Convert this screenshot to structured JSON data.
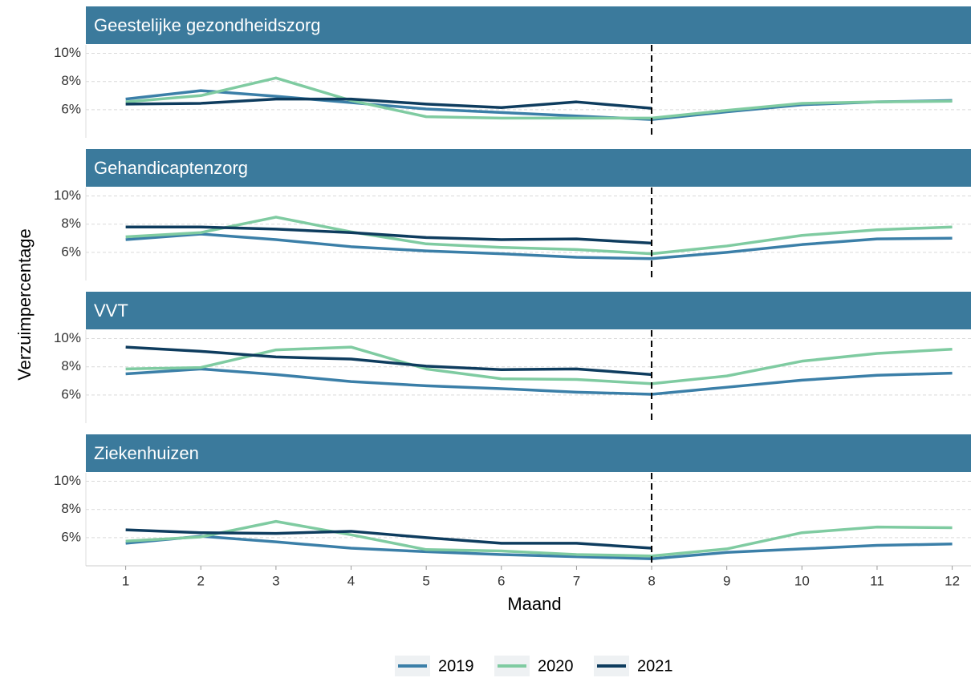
{
  "chart_data": {
    "type": "line",
    "x_label": "Maand",
    "y_label": "Verzuimpercentage",
    "x": [
      1,
      2,
      3,
      4,
      5,
      6,
      7,
      8,
      9,
      10,
      11,
      12
    ],
    "xlim": [
      0.47,
      12.25
    ],
    "xticks": [
      1,
      2,
      3,
      4,
      5,
      6,
      7,
      8,
      9,
      10,
      11,
      12
    ],
    "ylim": [
      4.0,
      10.6
    ],
    "yticks": [
      {
        "value": 6,
        "label": "6%"
      },
      {
        "value": 8,
        "label": "8%"
      },
      {
        "value": 10,
        "label": "10%"
      }
    ],
    "grid": true,
    "vline": 8,
    "legend": "bottom",
    "series": [
      {
        "name": "2019",
        "color": "#3b7fa8"
      },
      {
        "name": "2020",
        "color": "#7fcba1"
      },
      {
        "name": "2021",
        "color": "#0e3c5e"
      }
    ],
    "panels": [
      {
        "title": "Geestelijke gezondheidszorg",
        "values": [
          [
            6.75,
            7.35,
            6.95,
            6.5,
            6.05,
            5.8,
            5.55,
            5.3,
            5.85,
            6.35,
            6.55,
            6.65
          ],
          [
            6.55,
            7.0,
            8.25,
            6.65,
            5.5,
            5.4,
            5.4,
            5.4,
            5.95,
            6.45,
            6.55,
            6.6
          ],
          [
            6.4,
            6.45,
            6.75,
            6.75,
            6.4,
            6.15,
            6.55,
            6.1,
            null,
            null,
            null,
            null
          ]
        ]
      },
      {
        "title": "Gehandicaptenzorg",
        "values": [
          [
            6.9,
            7.3,
            6.9,
            6.4,
            6.1,
            5.9,
            5.65,
            5.55,
            6.0,
            6.55,
            6.95,
            7.0
          ],
          [
            7.1,
            7.4,
            8.5,
            7.45,
            6.6,
            6.35,
            6.2,
            5.9,
            6.45,
            7.2,
            7.6,
            7.8
          ],
          [
            7.8,
            7.8,
            7.65,
            7.4,
            7.05,
            6.9,
            6.95,
            6.65,
            null,
            null,
            null,
            null
          ]
        ]
      },
      {
        "title": "VVT",
        "values": [
          [
            7.5,
            7.85,
            7.45,
            6.95,
            6.65,
            6.45,
            6.2,
            6.05,
            6.55,
            7.05,
            7.4,
            7.55
          ],
          [
            7.85,
            7.95,
            9.2,
            9.4,
            7.85,
            7.15,
            7.1,
            6.8,
            7.35,
            8.4,
            8.95,
            9.25
          ],
          [
            9.4,
            9.1,
            8.7,
            8.55,
            8.05,
            7.8,
            7.85,
            7.45,
            null,
            null,
            null,
            null
          ]
        ]
      },
      {
        "title": "Ziekenhuizen",
        "values": [
          [
            5.6,
            6.1,
            5.7,
            5.25,
            5.0,
            4.8,
            4.65,
            4.5,
            4.95,
            5.2,
            5.45,
            5.55
          ],
          [
            5.75,
            6.05,
            7.15,
            6.2,
            5.15,
            5.05,
            4.8,
            4.7,
            5.2,
            6.35,
            6.75,
            6.7
          ],
          [
            6.55,
            6.35,
            6.3,
            6.45,
            6.0,
            5.6,
            5.6,
            5.25,
            null,
            null,
            null,
            null
          ]
        ]
      }
    ]
  }
}
